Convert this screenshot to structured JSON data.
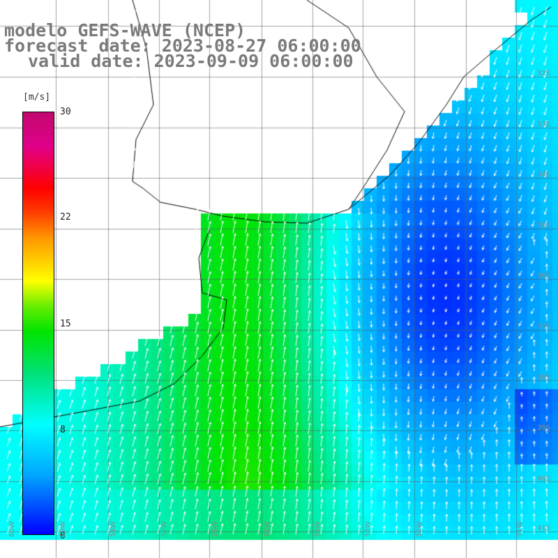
{
  "title": {
    "line1": "modelo GEFS-WAVE (NCEP)",
    "line2": "forecast date: 2023-08-27 06:00:00",
    "line3": "valid date: 2023-09-09 06:00:00"
  },
  "colorbar": {
    "unit": "[m/s]",
    "ticks": [
      "30",
      "22",
      "15",
      "8",
      "0"
    ],
    "tick_values": [
      30,
      22,
      15,
      8,
      0
    ],
    "colors": {
      "min": "#0000ff",
      "low": "#00ffff",
      "mid": "#00e400",
      "yellow": "#ffff00",
      "high": "#ff0000",
      "max": "#c2086e"
    }
  },
  "grid": {
    "lon_labels": [
      "60W",
      "59W",
      "58W",
      "57W",
      "56W",
      "55W",
      "54W",
      "53W",
      "52W",
      "51W"
    ],
    "lat_labels": [
      "32S",
      "33S",
      "34S",
      "35S",
      "36S",
      "37S",
      "38S",
      "39S",
      "40S",
      "41S"
    ]
  },
  "map_features": {
    "land_color": "#ffffff",
    "coastline": "Rio de la Plata estuary and Uruguay / Buenos Aires coast",
    "vector_color": "#ffffff"
  }
}
